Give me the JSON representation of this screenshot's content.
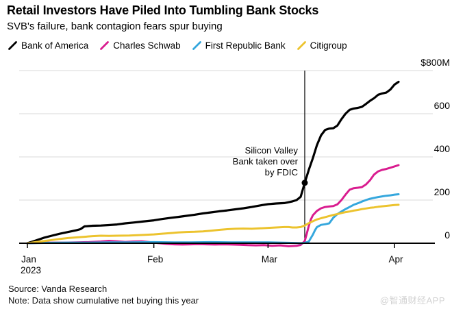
{
  "header": {
    "title": "Retail Investors Have Piled Into Tumbling Bank Stocks",
    "subtitle": "SVB's failure, bank contagion fears spur buying"
  },
  "legend": [
    {
      "label": "Bank of America",
      "color": "#000000"
    },
    {
      "label": "Charles Schwab",
      "color": "#d91c8f"
    },
    {
      "label": "First Republic Bank",
      "color": "#35a7dd"
    },
    {
      "label": "Citigroup",
      "color": "#ecc32e"
    }
  ],
  "chart_data": {
    "type": "line",
    "title": "Retail Investors Have Piled Into Tumbling Bank Stocks",
    "subtitle": "SVB's failure, bank contagion fears spur buying",
    "unit": "$M cumulative net buying",
    "ylim": [
      0,
      800
    ],
    "grid": "horizontal",
    "legend_position": "top",
    "y_ticks": [
      {
        "value": 0,
        "label": "0"
      },
      {
        "value": 200,
        "label": "200"
      },
      {
        "value": 400,
        "label": "400"
      },
      {
        "value": 600,
        "label": "600"
      },
      {
        "value": 800,
        "label": "$800M"
      }
    ],
    "x_ticks": [
      {
        "day": 0,
        "label": "Jan",
        "sublabel": "2023"
      },
      {
        "day": 31,
        "label": "Feb"
      },
      {
        "day": 59,
        "label": "Mar"
      },
      {
        "day": 90,
        "label": "Apr"
      }
    ],
    "event": {
      "day": 68,
      "lines": [
        "Silicon Valley",
        "Bank taken over",
        "by FDIC"
      ],
      "marker_series": "Bank of America",
      "marker_value": 280
    },
    "series": [
      {
        "name": "Bank of America",
        "color": "#000000",
        "points": [
          [
            0,
            0
          ],
          [
            2,
            12
          ],
          [
            4,
            25
          ],
          [
            6,
            35
          ],
          [
            8,
            44
          ],
          [
            10,
            52
          ],
          [
            12,
            60
          ],
          [
            13,
            65
          ],
          [
            14,
            78
          ],
          [
            16,
            81
          ],
          [
            18,
            82
          ],
          [
            20,
            84
          ],
          [
            22,
            87
          ],
          [
            24,
            92
          ],
          [
            26,
            96
          ],
          [
            28,
            100
          ],
          [
            31,
            106
          ],
          [
            33,
            112
          ],
          [
            35,
            117
          ],
          [
            37,
            122
          ],
          [
            39,
            127
          ],
          [
            41,
            132
          ],
          [
            43,
            138
          ],
          [
            45,
            143
          ],
          [
            47,
            148
          ],
          [
            49,
            152
          ],
          [
            51,
            157
          ],
          [
            53,
            162
          ],
          [
            55,
            168
          ],
          [
            57,
            175
          ],
          [
            59,
            181
          ],
          [
            61,
            184
          ],
          [
            63,
            186
          ],
          [
            65,
            194
          ],
          [
            66,
            200
          ],
          [
            67,
            215
          ],
          [
            68,
            280
          ],
          [
            69,
            340
          ],
          [
            70,
            395
          ],
          [
            71,
            455
          ],
          [
            72,
            500
          ],
          [
            73,
            525
          ],
          [
            74,
            531
          ],
          [
            75,
            533
          ],
          [
            76,
            545
          ],
          [
            77,
            575
          ],
          [
            78,
            600
          ],
          [
            79,
            618
          ],
          [
            80,
            624
          ],
          [
            81,
            627
          ],
          [
            82,
            632
          ],
          [
            83,
            645
          ],
          [
            84,
            660
          ],
          [
            85,
            672
          ],
          [
            86,
            688
          ],
          [
            87,
            694
          ],
          [
            88,
            698
          ],
          [
            89,
            712
          ],
          [
            90,
            735
          ],
          [
            91,
            748
          ]
        ]
      },
      {
        "name": "Charles Schwab",
        "color": "#d91c8f",
        "points": [
          [
            0,
            0
          ],
          [
            3,
            2
          ],
          [
            6,
            3
          ],
          [
            9,
            3
          ],
          [
            12,
            4
          ],
          [
            15,
            5
          ],
          [
            18,
            8
          ],
          [
            20,
            11
          ],
          [
            22,
            9
          ],
          [
            24,
            6
          ],
          [
            26,
            8
          ],
          [
            28,
            9
          ],
          [
            30,
            5
          ],
          [
            32,
            1
          ],
          [
            34,
            -3
          ],
          [
            36,
            -5
          ],
          [
            38,
            -6
          ],
          [
            40,
            -5
          ],
          [
            42,
            -4
          ],
          [
            44,
            -5
          ],
          [
            46,
            -6
          ],
          [
            48,
            -5
          ],
          [
            50,
            -6
          ],
          [
            52,
            -7
          ],
          [
            54,
            -9
          ],
          [
            56,
            -10
          ],
          [
            58,
            -9
          ],
          [
            60,
            -12
          ],
          [
            62,
            -10
          ],
          [
            64,
            -14
          ],
          [
            66,
            -12
          ],
          [
            67,
            -8
          ],
          [
            68,
            10
          ],
          [
            68.5,
            45
          ],
          [
            69,
            80
          ],
          [
            69.5,
            110
          ],
          [
            70,
            130
          ],
          [
            71,
            150
          ],
          [
            72,
            162
          ],
          [
            73,
            168
          ],
          [
            74,
            170
          ],
          [
            75,
            172
          ],
          [
            76,
            180
          ],
          [
            77,
            200
          ],
          [
            78,
            225
          ],
          [
            79,
            248
          ],
          [
            80,
            255
          ],
          [
            81,
            257
          ],
          [
            82,
            260
          ],
          [
            83,
            272
          ],
          [
            84,
            292
          ],
          [
            85,
            318
          ],
          [
            86,
            333
          ],
          [
            87,
            340
          ],
          [
            88,
            344
          ],
          [
            89,
            350
          ],
          [
            90,
            356
          ],
          [
            91,
            362
          ]
        ]
      },
      {
        "name": "First Republic Bank",
        "color": "#35a7dd",
        "points": [
          [
            0,
            0
          ],
          [
            5,
            2
          ],
          [
            10,
            3
          ],
          [
            15,
            3
          ],
          [
            20,
            4
          ],
          [
            25,
            4
          ],
          [
            31,
            5
          ],
          [
            36,
            4
          ],
          [
            40,
            4
          ],
          [
            45,
            5
          ],
          [
            50,
            4
          ],
          [
            55,
            4
          ],
          [
            59,
            4
          ],
          [
            62,
            3
          ],
          [
            64,
            2
          ],
          [
            66,
            1
          ],
          [
            67,
            0
          ],
          [
            68,
            2
          ],
          [
            69,
            8
          ],
          [
            70,
            40
          ],
          [
            70.5,
            60
          ],
          [
            71,
            75
          ],
          [
            72,
            85
          ],
          [
            73,
            88
          ],
          [
            74,
            92
          ],
          [
            75,
            118
          ],
          [
            76,
            135
          ],
          [
            77,
            147
          ],
          [
            78,
            158
          ],
          [
            79,
            168
          ],
          [
            80,
            178
          ],
          [
            81,
            185
          ],
          [
            82,
            193
          ],
          [
            83,
            200
          ],
          [
            84,
            206
          ],
          [
            85,
            210
          ],
          [
            86,
            214
          ],
          [
            87,
            217
          ],
          [
            88,
            220
          ],
          [
            89,
            222
          ],
          [
            90,
            225
          ],
          [
            91,
            227
          ]
        ]
      },
      {
        "name": "Citigroup",
        "color": "#ecc32e",
        "points": [
          [
            0,
            0
          ],
          [
            2,
            5
          ],
          [
            4,
            10
          ],
          [
            6,
            15
          ],
          [
            8,
            20
          ],
          [
            10,
            24
          ],
          [
            12,
            27
          ],
          [
            14,
            30
          ],
          [
            16,
            33
          ],
          [
            18,
            35
          ],
          [
            20,
            34
          ],
          [
            22,
            35
          ],
          [
            25,
            36
          ],
          [
            28,
            38
          ],
          [
            31,
            41
          ],
          [
            33,
            44
          ],
          [
            35,
            47
          ],
          [
            37,
            50
          ],
          [
            39,
            52
          ],
          [
            41,
            53
          ],
          [
            43,
            55
          ],
          [
            45,
            58
          ],
          [
            47,
            62
          ],
          [
            49,
            65
          ],
          [
            51,
            67
          ],
          [
            53,
            68
          ],
          [
            55,
            67
          ],
          [
            57,
            69
          ],
          [
            59,
            71
          ],
          [
            61,
            73
          ],
          [
            63,
            75
          ],
          [
            64,
            75
          ],
          [
            65,
            73
          ],
          [
            66,
            73
          ],
          [
            67,
            75
          ],
          [
            68,
            82
          ],
          [
            69,
            93
          ],
          [
            70,
            102
          ],
          [
            71,
            110
          ],
          [
            72,
            116
          ],
          [
            73,
            121
          ],
          [
            74,
            126
          ],
          [
            75,
            131
          ],
          [
            76,
            135
          ],
          [
            77,
            140
          ],
          [
            78,
            144
          ],
          [
            79,
            147
          ],
          [
            80,
            151
          ],
          [
            81,
            154
          ],
          [
            82,
            158
          ],
          [
            83,
            161
          ],
          [
            84,
            164
          ],
          [
            85,
            166
          ],
          [
            86,
            169
          ],
          [
            87,
            171
          ],
          [
            88,
            173
          ],
          [
            89,
            175
          ],
          [
            90,
            177
          ],
          [
            91,
            178
          ]
        ]
      }
    ]
  },
  "footer": {
    "source": "Source: Vanda Research",
    "note": "Note: Data show cumulative net buying this year",
    "watermark": "@智通财经APP"
  }
}
